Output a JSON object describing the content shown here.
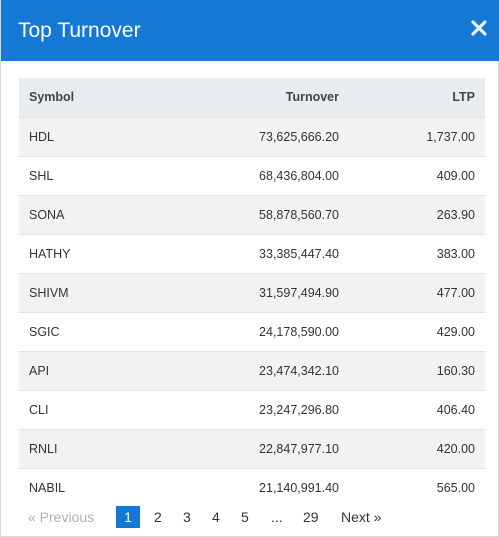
{
  "modal": {
    "title": "Top Turnover",
    "close_icon": "close-icon"
  },
  "table": {
    "headers": {
      "symbol": "Symbol",
      "turnover": "Turnover",
      "ltp": "LTP"
    },
    "rows": [
      {
        "symbol": "HDL",
        "turnover": "73,625,666.20",
        "ltp": "1,737.00"
      },
      {
        "symbol": "SHL",
        "turnover": "68,436,804.00",
        "ltp": "409.00"
      },
      {
        "symbol": "SONA",
        "turnover": "58,878,560.70",
        "ltp": "263.90"
      },
      {
        "symbol": "HATHY",
        "turnover": "33,385,447.40",
        "ltp": "383.00"
      },
      {
        "symbol": "SHIVM",
        "turnover": "31,597,494.90",
        "ltp": "477.00"
      },
      {
        "symbol": "SGIC",
        "turnover": "24,178,590.00",
        "ltp": "429.00"
      },
      {
        "symbol": "API",
        "turnover": "23,474,342.10",
        "ltp": "160.30"
      },
      {
        "symbol": "CLI",
        "turnover": "23,247,296.80",
        "ltp": "406.40"
      },
      {
        "symbol": "RNLI",
        "turnover": "22,847,977.10",
        "ltp": "420.00"
      },
      {
        "symbol": "NABIL",
        "turnover": "21,140,991.40",
        "ltp": "565.00"
      }
    ]
  },
  "pagination": {
    "prev_label": "« Previous",
    "pages": [
      "1",
      "2",
      "3",
      "4",
      "5",
      "...",
      "29"
    ],
    "current": "1",
    "next_label": "Next »"
  },
  "colors": {
    "header_bg": "#1478d4",
    "active_page_bg": "#1478d4",
    "table_head_bg": "#e9ecef",
    "row_stripe": "#f2f2f2"
  }
}
